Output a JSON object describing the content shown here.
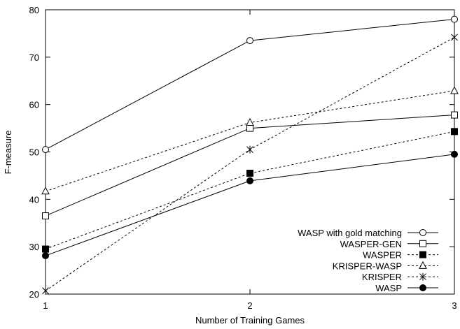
{
  "chart_data": {
    "type": "line",
    "xlabel": "Number of Training Games",
    "ylabel": "F-measure",
    "x": [
      1,
      2,
      3
    ],
    "xlim": [
      1,
      3
    ],
    "ylim": [
      20,
      80
    ],
    "xticks": [
      "1",
      "2",
      "3"
    ],
    "yticks": [
      "20",
      "30",
      "40",
      "50",
      "60",
      "70",
      "80"
    ],
    "grid": false,
    "legend_position": "bottom-right",
    "series": [
      {
        "name": "WASP with gold matching",
        "values": [
          50.5,
          73.5,
          78.0
        ],
        "marker": "circle-open",
        "dash": "solid",
        "color": "#000000"
      },
      {
        "name": "WASPER-GEN",
        "values": [
          36.5,
          55.0,
          57.8
        ],
        "marker": "square-open",
        "dash": "solid",
        "color": "#000000"
      },
      {
        "name": "WASPER",
        "values": [
          29.5,
          45.5,
          54.3
        ],
        "marker": "square-filled",
        "dash": "dashed",
        "color": "#000000"
      },
      {
        "name": "KRISPER-WASP",
        "values": [
          41.7,
          56.2,
          62.9
        ],
        "marker": "triangle-open",
        "dash": "dashed",
        "color": "#000000"
      },
      {
        "name": "KRISPER",
        "values": [
          20.7,
          50.5,
          74.2
        ],
        "marker": "star",
        "dash": "dashed",
        "color": "#000000"
      },
      {
        "name": "WASP",
        "values": [
          28.1,
          43.9,
          49.5
        ],
        "marker": "circle-filled",
        "dash": "solid",
        "color": "#000000"
      }
    ]
  }
}
